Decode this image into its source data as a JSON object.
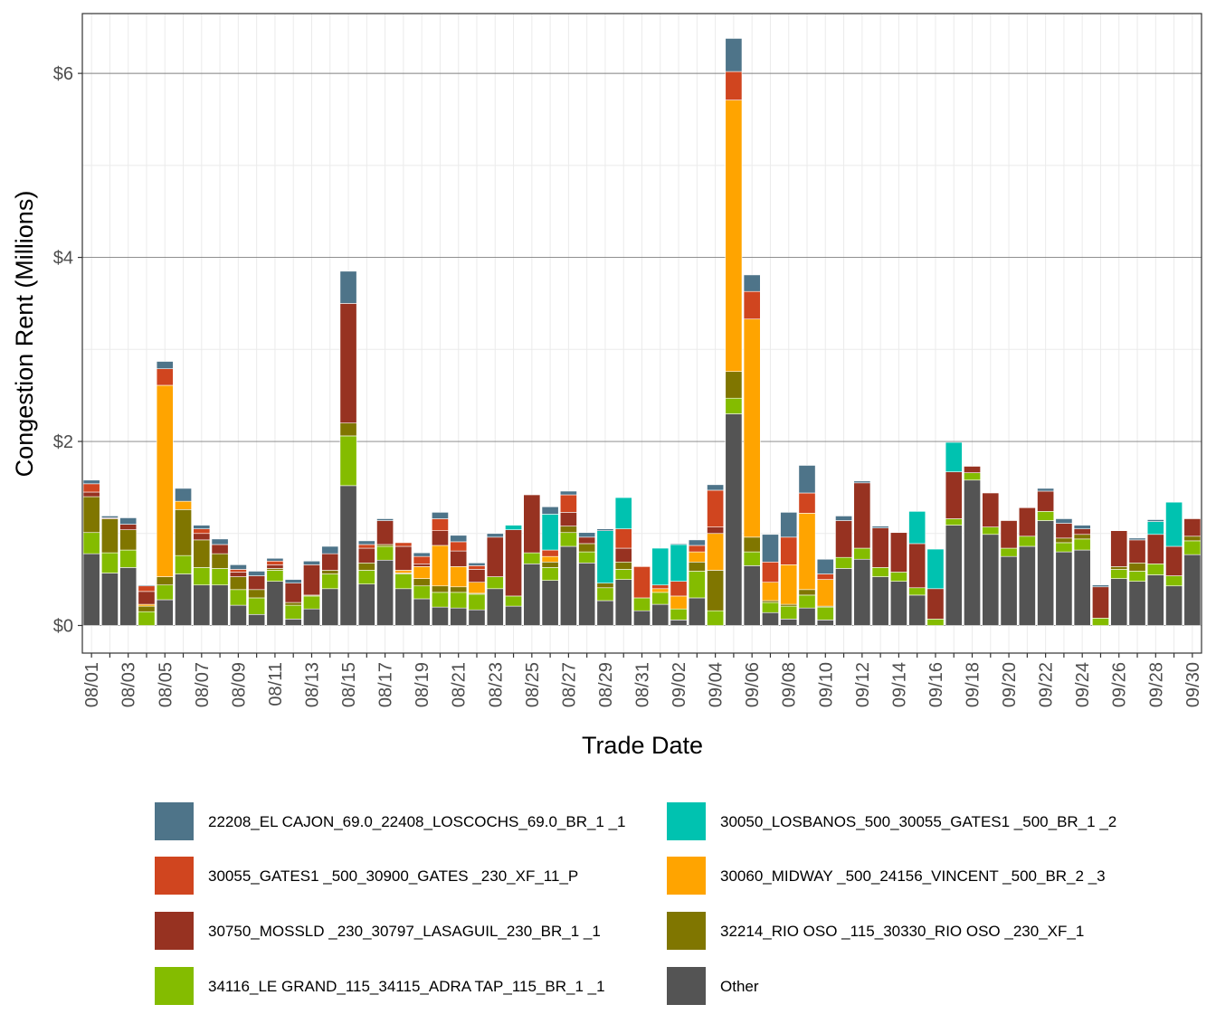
{
  "chart_data": {
    "type": "bar",
    "stacked": true,
    "xlabel": "Trade Date",
    "ylabel": "Congestion Rent (Millions)",
    "ylim": [
      -0.3,
      6.65
    ],
    "yticks": [
      0,
      2,
      4,
      6
    ],
    "ytick_labels": [
      "$0",
      "$2",
      "$4",
      "$6"
    ],
    "grid": true,
    "legend_position": "bottom",
    "categories": [
      "08/01",
      "08/02",
      "08/03",
      "08/04",
      "08/05",
      "08/06",
      "08/07",
      "08/08",
      "08/09",
      "08/10",
      "08/11",
      "08/12",
      "08/13",
      "08/14",
      "08/15",
      "08/16",
      "08/17",
      "08/18",
      "08/19",
      "08/20",
      "08/21",
      "08/22",
      "08/23",
      "08/24",
      "08/25",
      "08/26",
      "08/27",
      "08/28",
      "08/29",
      "08/30",
      "08/31",
      "09/01",
      "09/02",
      "09/03",
      "09/04",
      "09/05",
      "09/06",
      "09/07",
      "09/08",
      "09/09",
      "09/10",
      "09/11",
      "09/12",
      "09/13",
      "09/14",
      "09/15",
      "09/16",
      "09/17",
      "09/18",
      "09/19",
      "09/20",
      "09/21",
      "09/22",
      "09/23",
      "09/24",
      "09/25",
      "09/26",
      "09/27",
      "09/28",
      "09/29",
      "09/30"
    ],
    "tick_labels": [
      "08/01",
      "08/03",
      "08/05",
      "08/07",
      "08/09",
      "08/11",
      "08/13",
      "08/15",
      "08/17",
      "08/19",
      "08/21",
      "08/23",
      "08/25",
      "08/27",
      "08/29",
      "08/31",
      "09/02",
      "09/04",
      "09/06",
      "09/08",
      "09/10",
      "09/12",
      "09/14",
      "09/16",
      "09/18",
      "09/20",
      "09/22",
      "09/24",
      "09/26",
      "09/28",
      "09/30"
    ],
    "series": [
      {
        "name": "Other",
        "color": "#545454",
        "values": [
          0.78,
          0.57,
          0.63,
          0.0,
          0.28,
          0.56,
          0.44,
          0.44,
          0.22,
          0.12,
          0.48,
          0.07,
          0.18,
          0.4,
          1.52,
          0.45,
          0.71,
          0.4,
          0.29,
          0.2,
          0.19,
          0.17,
          0.4,
          0.21,
          0.67,
          0.49,
          0.86,
          0.68,
          0.27,
          0.5,
          0.16,
          0.23,
          0.06,
          0.3,
          0.0,
          2.3,
          0.65,
          0.14,
          0.07,
          0.19,
          0.06,
          0.62,
          0.72,
          0.53,
          0.48,
          0.33,
          0.0,
          1.09,
          1.58,
          0.99,
          0.75,
          0.86,
          1.14,
          0.8,
          0.82,
          0.0,
          0.51,
          0.48,
          0.55,
          0.43,
          0.77
        ]
      },
      {
        "name": "34116_LE GRAND_115_34115_ADRA TAP_115_BR_1 _1",
        "color": "#84bc00",
        "values": [
          0.23,
          0.22,
          0.19,
          0.15,
          0.16,
          0.2,
          0.19,
          0.18,
          0.17,
          0.18,
          0.12,
          0.15,
          0.14,
          0.16,
          0.54,
          0.15,
          0.15,
          0.16,
          0.14,
          0.16,
          0.17,
          0.17,
          0.13,
          0.11,
          0.12,
          0.14,
          0.15,
          0.12,
          0.14,
          0.11,
          0.14,
          0.13,
          0.12,
          0.29,
          0.16,
          0.17,
          0.15,
          0.11,
          0.14,
          0.14,
          0.14,
          0.12,
          0.12,
          0.1,
          0.1,
          0.08,
          0.07,
          0.07,
          0.08,
          0.08,
          0.09,
          0.11,
          0.1,
          0.1,
          0.12,
          0.08,
          0.1,
          0.11,
          0.12,
          0.11,
          0.15
        ]
      },
      {
        "name": "32214_RIO OSO _115_30330_RIO OSO _230_XF_1",
        "color": "#807600",
        "values": [
          0.39,
          0.37,
          0.22,
          0.06,
          0.09,
          0.5,
          0.3,
          0.16,
          0.14,
          0.09,
          0.02,
          0.03,
          0.01,
          0.04,
          0.14,
          0.08,
          0.02,
          0.01,
          0.08,
          0.07,
          0.06,
          0.01,
          0.0,
          0.0,
          0.0,
          0.06,
          0.07,
          0.09,
          0.05,
          0.08,
          0.0,
          0.0,
          0.0,
          0.1,
          0.44,
          0.29,
          0.16,
          0.02,
          0.02,
          0.06,
          0.01,
          0.0,
          0.0,
          0.0,
          0.0,
          0.0,
          0.0,
          0.0,
          0.0,
          0.0,
          0.0,
          0.0,
          0.0,
          0.05,
          0.05,
          0.0,
          0.03,
          0.09,
          0.0,
          0.0,
          0.05
        ]
      },
      {
        "name": "30060_MIDWAY _500_24156_VINCENT _500_BR_2 _3",
        "color": "#ffa400",
        "values": [
          0.0,
          0.0,
          0.0,
          0.02,
          2.08,
          0.09,
          0.0,
          0.0,
          0.0,
          0.0,
          0.0,
          0.0,
          0.0,
          0.0,
          0.0,
          0.0,
          0.0,
          0.03,
          0.13,
          0.44,
          0.22,
          0.12,
          0.0,
          0.0,
          0.0,
          0.06,
          0.0,
          0.0,
          0.0,
          0.0,
          0.0,
          0.04,
          0.14,
          0.11,
          0.4,
          2.95,
          2.37,
          0.2,
          0.43,
          0.83,
          0.29,
          0.0,
          0.0,
          0.0,
          0.0,
          0.0,
          0.0,
          0.0,
          0.0,
          0.0,
          0.0,
          0.0,
          0.0,
          0.0,
          0.0,
          0.0,
          0.0,
          0.0,
          0.0,
          0.0,
          0.0
        ]
      },
      {
        "name": "30750_MOSSLD _230_30797_LASAGUIL_230_BR_1 _1",
        "color": "#973221",
        "values": [
          0.05,
          0.01,
          0.06,
          0.14,
          0.0,
          0.0,
          0.07,
          0.1,
          0.05,
          0.15,
          0.04,
          0.21,
          0.33,
          0.18,
          1.3,
          0.16,
          0.26,
          0.26,
          0.03,
          0.16,
          0.17,
          0.14,
          0.43,
          0.72,
          0.63,
          0.0,
          0.15,
          0.07,
          0.0,
          0.15,
          0.0,
          0.0,
          0.0,
          0.0,
          0.07,
          0.0,
          0.0,
          0.0,
          0.0,
          0.0,
          0.0,
          0.4,
          0.71,
          0.43,
          0.43,
          0.48,
          0.33,
          0.51,
          0.07,
          0.37,
          0.3,
          0.31,
          0.22,
          0.16,
          0.06,
          0.34,
          0.39,
          0.25,
          0.32,
          0.32,
          0.19
        ]
      },
      {
        "name": "30055_GATES1 _500_30900_GATES _230_XF_11_P",
        "color": "#d0451f",
        "values": [
          0.09,
          0.0,
          0.0,
          0.06,
          0.18,
          0.0,
          0.05,
          0.0,
          0.03,
          0.0,
          0.04,
          0.0,
          0.0,
          0.0,
          0.0,
          0.04,
          0.0,
          0.04,
          0.08,
          0.13,
          0.1,
          0.04,
          0.0,
          0.0,
          0.0,
          0.07,
          0.19,
          0.0,
          0.0,
          0.21,
          0.34,
          0.04,
          0.16,
          0.07,
          0.4,
          0.31,
          0.3,
          0.22,
          0.3,
          0.22,
          0.06,
          0.0,
          0.0,
          0.0,
          0.0,
          0.0,
          0.0,
          0.0,
          0.0,
          0.0,
          0.0,
          0.0,
          0.0,
          0.0,
          0.0,
          0.0,
          0.0,
          0.0,
          0.0,
          0.0,
          0.0
        ]
      },
      {
        "name": "30050_LOSBANOS_500_30055_GATES1 _500_BR_1 _2",
        "color": "#00c2b0",
        "values": [
          0.0,
          0.0,
          0.0,
          0.0,
          0.0,
          0.0,
          0.0,
          0.0,
          0.0,
          0.0,
          0.0,
          0.0,
          0.0,
          0.0,
          0.0,
          0.0,
          0.0,
          0.0,
          0.0,
          0.0,
          0.0,
          0.0,
          0.0,
          0.05,
          0.0,
          0.39,
          0.0,
          0.0,
          0.57,
          0.34,
          0.0,
          0.4,
          0.4,
          0.0,
          0.0,
          0.0,
          0.0,
          0.0,
          0.0,
          0.0,
          0.0,
          0.0,
          0.0,
          0.0,
          0.0,
          0.35,
          0.43,
          0.32,
          0.0,
          0.0,
          0.0,
          0.0,
          0.0,
          0.0,
          0.0,
          0.0,
          0.0,
          0.0,
          0.14,
          0.48,
          0.0
        ]
      },
      {
        "name": "22208_EL CAJON_69.0_22408_LOSCOCHS_69.0_BR_1 _1",
        "color": "#4e7489",
        "values": [
          0.04,
          0.02,
          0.07,
          0.01,
          0.08,
          0.14,
          0.04,
          0.06,
          0.05,
          0.05,
          0.03,
          0.04,
          0.04,
          0.08,
          0.35,
          0.04,
          0.02,
          0.0,
          0.04,
          0.07,
          0.07,
          0.03,
          0.04,
          0.0,
          0.0,
          0.08,
          0.04,
          0.05,
          0.02,
          0.0,
          0.0,
          0.0,
          0.01,
          0.06,
          0.06,
          0.36,
          0.18,
          0.3,
          0.27,
          0.3,
          0.16,
          0.05,
          0.02,
          0.02,
          0.0,
          0.0,
          0.0,
          0.0,
          0.0,
          0.0,
          0.0,
          0.0,
          0.03,
          0.05,
          0.04,
          0.02,
          0.0,
          0.02,
          0.02,
          0.0,
          0.0
        ]
      }
    ],
    "legend": [
      "22208_EL CAJON_69.0_22408_LOSCOCHS_69.0_BR_1 _1",
      "30050_LOSBANOS_500_30055_GATES1 _500_BR_1 _2",
      "30055_GATES1 _500_30900_GATES _230_XF_11_P",
      "30060_MIDWAY _500_24156_VINCENT _500_BR_2 _3",
      "30750_MOSSLD _230_30797_LASAGUIL_230_BR_1 _1",
      "32214_RIO OSO _115_30330_RIO OSO _230_XF_1",
      "34116_LE GRAND_115_34115_ADRA TAP_115_BR_1 _1",
      "Other"
    ]
  }
}
